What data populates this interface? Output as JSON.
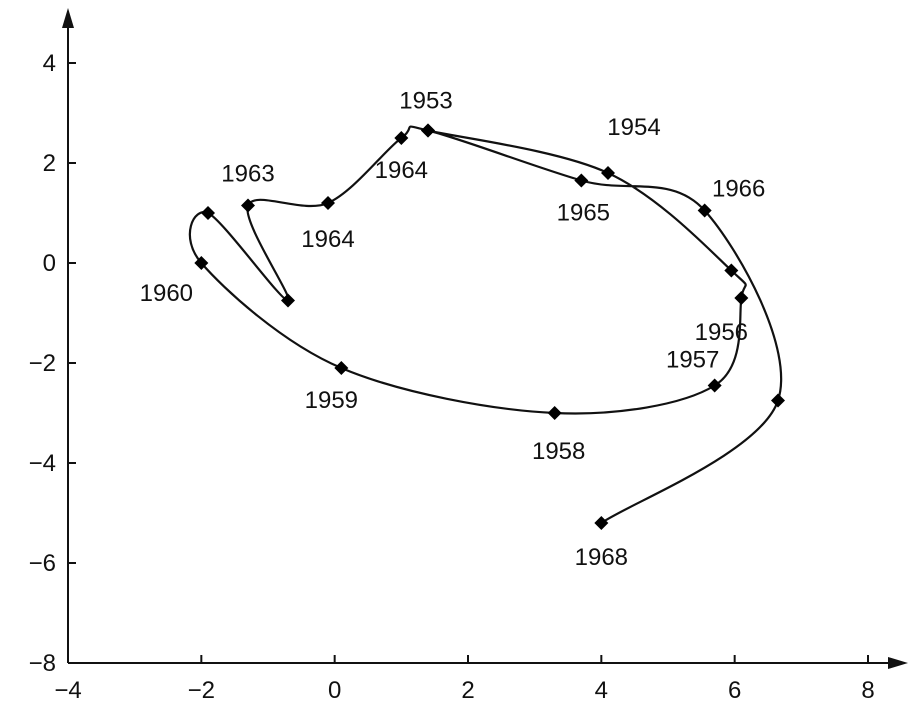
{
  "chart_data": {
    "type": "line",
    "title": "",
    "xlabel": "",
    "ylabel": "",
    "xlim": [
      -4,
      8
    ],
    "ylim": [
      -8,
      4
    ],
    "x_ticks": [
      "−4",
      "−2",
      "0",
      "2",
      "4",
      "6",
      "8"
    ],
    "y_ticks": [
      "4",
      "2",
      "0",
      "−2",
      "−4",
      "−6",
      "−8"
    ],
    "grid": false,
    "legend": "none",
    "colors": {
      "line": "#111111",
      "marker": "#000000"
    },
    "points": [
      {
        "x": 1.4,
        "y": 2.65,
        "label": "1953"
      },
      {
        "x": 4.1,
        "y": 1.8,
        "label": "1954"
      },
      {
        "x": 5.95,
        "y": -0.15,
        "label": ""
      },
      {
        "x": 6.1,
        "y": -0.7,
        "label": "1956"
      },
      {
        "x": 5.7,
        "y": -2.45,
        "label": "1957"
      },
      {
        "x": 3.3,
        "y": -3.0,
        "label": "1958"
      },
      {
        "x": 0.1,
        "y": -2.1,
        "label": "1959"
      },
      {
        "x": -2.0,
        "y": 0.0,
        "label": "1960"
      },
      {
        "x": -1.9,
        "y": 1.0,
        "label": ""
      },
      {
        "x": -0.7,
        "y": -0.75,
        "label": ""
      },
      {
        "x": -1.3,
        "y": 1.15,
        "label": "1963"
      },
      {
        "x": -0.1,
        "y": 1.2,
        "label": "1964"
      },
      {
        "x": 1.0,
        "y": 2.5,
        "label": "1964"
      },
      {
        "x": 1.4,
        "y": 2.65,
        "label": ""
      },
      {
        "x": 3.7,
        "y": 1.65,
        "label": "1965"
      },
      {
        "x": 5.55,
        "y": 1.05,
        "label": "1966"
      },
      {
        "x": 6.65,
        "y": -2.75,
        "label": ""
      },
      {
        "x": 4.0,
        "y": -5.2,
        "label": "1968"
      }
    ]
  }
}
